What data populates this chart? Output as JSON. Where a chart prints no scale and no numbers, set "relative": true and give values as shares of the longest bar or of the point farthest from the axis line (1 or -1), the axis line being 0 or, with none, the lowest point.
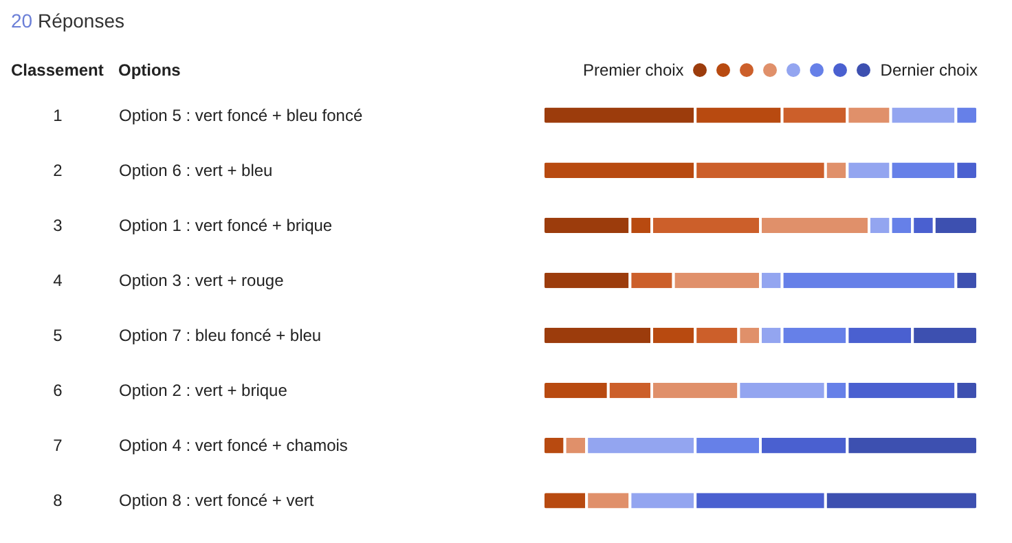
{
  "chart_data": {
    "type": "bar",
    "orientation": "horizontal",
    "stacked": true,
    "relative": true,
    "title": "20 Réponses",
    "categories": [
      "Option 5 : vert foncé + bleu foncé",
      "Option 6 : vert + bleu",
      "Option 1 : vert foncé + brique",
      "Option 3 : vert + rouge",
      "Option 7 : bleu foncé + bleu",
      "Option 2 : vert + brique",
      "Option 4 : vert foncé + chamois",
      "Option 8 : vert foncé + vert"
    ],
    "series": [
      {
        "color": "#9c3c0c",
        "values": [
          0.35,
          null,
          0.2,
          0.2,
          0.25,
          null,
          null,
          null
        ]
      },
      {
        "color": "#b84a10",
        "values": [
          0.2,
          0.35,
          0.05,
          null,
          0.1,
          0.15,
          0.05,
          0.1
        ]
      },
      {
        "color": "#cc5f2a",
        "values": [
          0.15,
          0.3,
          0.25,
          0.1,
          0.1,
          0.1,
          null,
          null
        ]
      },
      {
        "color": "#e0906a",
        "values": [
          0.1,
          0.05,
          0.25,
          0.2,
          0.05,
          0.2,
          0.05,
          0.1
        ]
      },
      {
        "color": "#93a5f0",
        "values": [
          0.15,
          0.1,
          0.05,
          0.05,
          0.05,
          0.2,
          0.25,
          0.15
        ]
      },
      {
        "color": "#6680e8",
        "values": [
          0.05,
          0.15,
          0.05,
          0.4,
          0.15,
          0.05,
          0.15,
          null
        ]
      },
      {
        "color": "#4a60d0",
        "values": [
          null,
          0.05,
          0.05,
          null,
          0.15,
          0.25,
          0.2,
          0.3
        ]
      },
      {
        "color": "#3d50b0",
        "values": [
          null,
          null,
          0.1,
          0.05,
          0.15,
          0.05,
          0.3,
          0.35
        ]
      }
    ],
    "annotations": [
      "Classement",
      "Options",
      "Premier choix",
      "Dernier choix",
      "1",
      "2",
      "3",
      "4",
      "5",
      "6",
      "7",
      "8"
    ]
  }
}
